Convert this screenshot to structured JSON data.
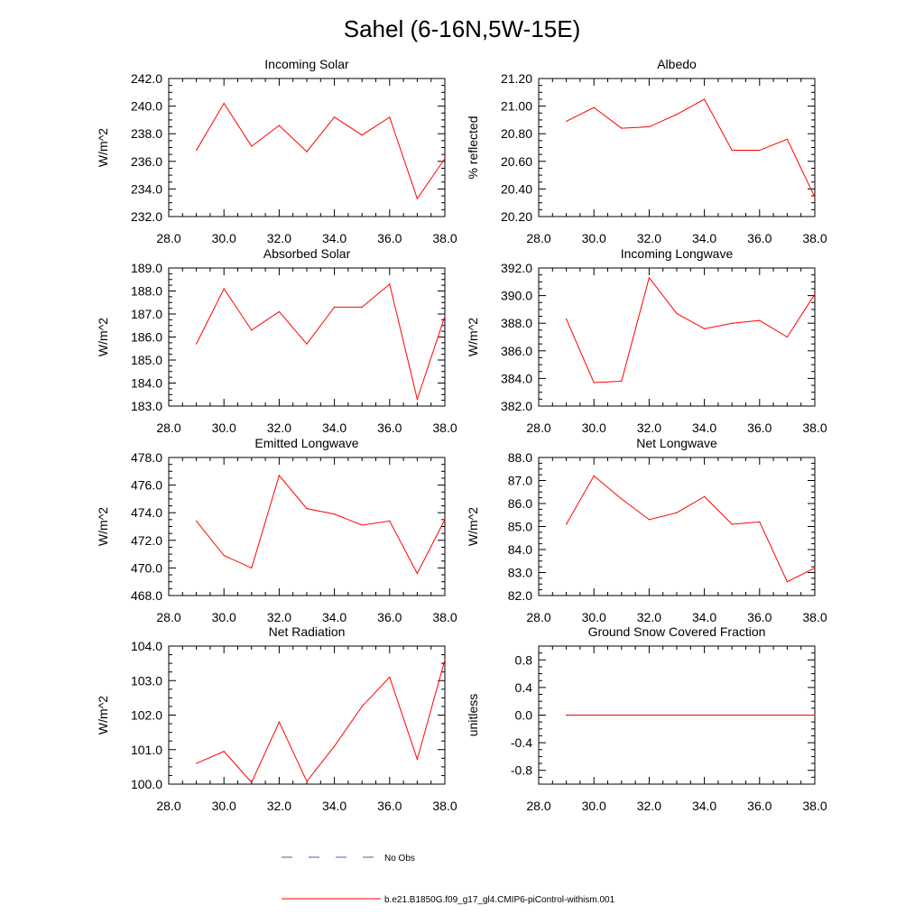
{
  "figure": {
    "title": "Sahel (6-16N,5W-15E)"
  },
  "legend": {
    "entries": [
      {
        "label": "No Obs",
        "color": "#5555bb",
        "dashed": true
      },
      {
        "label": "b.e21.B1850G.f09_g17_gl4.CMIP6-piControl-withism.001",
        "color": "#ff0000",
        "dashed": false
      }
    ]
  },
  "chart_data": [
    {
      "type": "line",
      "title": "Incoming Solar",
      "ylabel": "W/m^2",
      "xlabel": "",
      "x": [
        29,
        30,
        31,
        32,
        33,
        34,
        35,
        36,
        37,
        38
      ],
      "series": [
        {
          "name": "b.e21.B1850G.f09_g17_gl4.CMIP6-piControl-withism.001",
          "color": "#ff0000",
          "values": [
            236.8,
            240.2,
            237.1,
            238.6,
            236.7,
            239.2,
            237.9,
            239.2,
            233.3,
            236.2
          ]
        }
      ],
      "xlim": [
        28,
        38
      ],
      "ylim": [
        232,
        242
      ],
      "xticks": [
        "28.0",
        "30.0",
        "32.0",
        "34.0",
        "36.0",
        "38.0"
      ],
      "yticks": [
        "232.0",
        "234.0",
        "236.0",
        "238.0",
        "240.0",
        "242.0"
      ]
    },
    {
      "type": "line",
      "title": "Albedo",
      "ylabel": "% reflected",
      "xlabel": "",
      "x": [
        29,
        30,
        31,
        32,
        33,
        34,
        35,
        36,
        37,
        38
      ],
      "series": [
        {
          "name": "b.e21.B1850G.f09_g17_gl4.CMIP6-piControl-withism.001",
          "color": "#ff0000",
          "values": [
            20.89,
            20.99,
            20.84,
            20.85,
            20.94,
            21.05,
            20.68,
            20.68,
            20.76,
            20.34
          ]
        }
      ],
      "xlim": [
        28,
        38
      ],
      "ylim": [
        20.2,
        21.2
      ],
      "xticks": [
        "28.0",
        "30.0",
        "32.0",
        "34.0",
        "36.0",
        "38.0"
      ],
      "yticks": [
        "20.20",
        "20.40",
        "20.60",
        "20.80",
        "21.00",
        "21.20"
      ]
    },
    {
      "type": "line",
      "title": "Absorbed Solar",
      "ylabel": "W/m^2",
      "xlabel": "",
      "x": [
        29,
        30,
        31,
        32,
        33,
        34,
        35,
        36,
        37,
        38
      ],
      "series": [
        {
          "name": "b.e21.B1850G.f09_g17_gl4.CMIP6-piControl-withism.001",
          "color": "#ff0000",
          "values": [
            185.7,
            188.1,
            186.3,
            187.1,
            185.7,
            187.3,
            187.3,
            188.3,
            183.3,
            186.9
          ]
        }
      ],
      "xlim": [
        28,
        38
      ],
      "ylim": [
        183,
        189
      ],
      "xticks": [
        "28.0",
        "30.0",
        "32.0",
        "34.0",
        "36.0",
        "38.0"
      ],
      "yticks": [
        "183.0",
        "184.0",
        "185.0",
        "186.0",
        "187.0",
        "188.0",
        "189.0"
      ]
    },
    {
      "type": "line",
      "title": "Incoming Longwave",
      "ylabel": "W/m^2",
      "xlabel": "",
      "x": [
        29,
        30,
        31,
        32,
        33,
        34,
        35,
        36,
        37,
        38
      ],
      "series": [
        {
          "name": "b.e21.B1850G.f09_g17_gl4.CMIP6-piControl-withism.001",
          "color": "#ff0000",
          "values": [
            388.3,
            383.7,
            383.8,
            391.3,
            388.7,
            387.6,
            388.0,
            388.2,
            387.0,
            390.1
          ]
        }
      ],
      "xlim": [
        28,
        38
      ],
      "ylim": [
        382,
        392
      ],
      "xticks": [
        "28.0",
        "30.0",
        "32.0",
        "34.0",
        "36.0",
        "38.0"
      ],
      "yticks": [
        "382.0",
        "384.0",
        "386.0",
        "388.0",
        "390.0",
        "392.0"
      ]
    },
    {
      "type": "line",
      "title": "Emitted Longwave",
      "ylabel": "W/m^2",
      "xlabel": "",
      "x": [
        29,
        30,
        31,
        32,
        33,
        34,
        35,
        36,
        37,
        38
      ],
      "series": [
        {
          "name": "b.e21.B1850G.f09_g17_gl4.CMIP6-piControl-withism.001",
          "color": "#ff0000",
          "values": [
            473.4,
            470.9,
            470.0,
            476.7,
            474.3,
            473.9,
            473.1,
            473.4,
            469.6,
            473.5
          ]
        }
      ],
      "xlim": [
        28,
        38
      ],
      "ylim": [
        468,
        478
      ],
      "xticks": [
        "28.0",
        "30.0",
        "32.0",
        "34.0",
        "36.0",
        "38.0"
      ],
      "yticks": [
        "468.0",
        "470.0",
        "472.0",
        "474.0",
        "476.0",
        "478.0"
      ]
    },
    {
      "type": "line",
      "title": "Net Longwave",
      "ylabel": "W/m^2",
      "xlabel": "",
      "x": [
        29,
        30,
        31,
        32,
        33,
        34,
        35,
        36,
        37,
        38
      ],
      "series": [
        {
          "name": "b.e21.B1850G.f09_g17_gl4.CMIP6-piControl-withism.001",
          "color": "#ff0000",
          "values": [
            85.1,
            87.2,
            86.2,
            85.3,
            85.6,
            86.3,
            85.1,
            85.2,
            82.6,
            83.2
          ]
        }
      ],
      "xlim": [
        28,
        38
      ],
      "ylim": [
        82,
        88
      ],
      "xticks": [
        "28.0",
        "30.0",
        "32.0",
        "34.0",
        "36.0",
        "38.0"
      ],
      "yticks": [
        "82.0",
        "83.0",
        "84.0",
        "85.0",
        "86.0",
        "87.0",
        "88.0"
      ]
    },
    {
      "type": "line",
      "title": "Net Radiation",
      "ylabel": "W/m^2",
      "xlabel": "",
      "x": [
        29,
        30,
        31,
        32,
        33,
        34,
        35,
        36,
        37,
        38
      ],
      "series": [
        {
          "name": "b.e21.B1850G.f09_g17_gl4.CMIP6-piControl-withism.001",
          "color": "#ff0000",
          "values": [
            100.6,
            100.95,
            100.05,
            101.8,
            100.08,
            101.1,
            102.25,
            103.1,
            100.72,
            103.6
          ]
        }
      ],
      "xlim": [
        28,
        38
      ],
      "ylim": [
        100,
        104
      ],
      "xticks": [
        "28.0",
        "30.0",
        "32.0",
        "34.0",
        "36.0",
        "38.0"
      ],
      "yticks": [
        "100.0",
        "101.0",
        "102.0",
        "103.0",
        "104.0"
      ]
    },
    {
      "type": "line",
      "title": "Ground Snow Covered Fraction",
      "ylabel": "unitless",
      "xlabel": "",
      "x": [
        29,
        30,
        31,
        32,
        33,
        34,
        35,
        36,
        37,
        38
      ],
      "series": [
        {
          "name": "b.e21.B1850G.f09_g17_gl4.CMIP6-piControl-withism.001",
          "color": "#ff0000",
          "values": [
            0,
            0,
            0,
            0,
            0,
            0,
            0,
            0,
            0,
            0
          ]
        }
      ],
      "xlim": [
        28,
        38
      ],
      "ylim": [
        -1,
        1
      ],
      "xticks": [
        "28.0",
        "30.0",
        "32.0",
        "34.0",
        "36.0",
        "38.0"
      ],
      "yticks": [
        "-0.8",
        "-0.4",
        "0.0",
        "0.4",
        "0.8"
      ]
    }
  ]
}
